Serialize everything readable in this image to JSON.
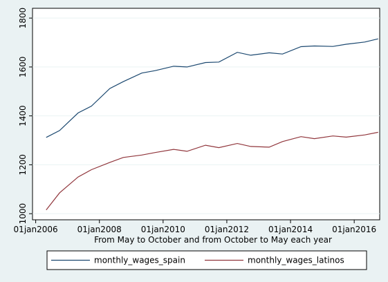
{
  "chart_data": {
    "type": "line",
    "title": "",
    "xlabel": "From May to October and from October to May each year",
    "ylabel": "",
    "xlim": [
      2005.9,
      2016.8
    ],
    "ylim": [
      975,
      1840
    ],
    "xticks": [
      {
        "value": 2006,
        "label": "01jan2006"
      },
      {
        "value": 2008,
        "label": "01jan2008"
      },
      {
        "value": 2010,
        "label": "01jan2010"
      },
      {
        "value": 2012,
        "label": "01jan2012"
      },
      {
        "value": 2014,
        "label": "01jan2014"
      },
      {
        "value": 2016,
        "label": "01jan2016"
      }
    ],
    "yticks": [
      1000,
      1200,
      1400,
      1600,
      1800
    ],
    "grid": "horizontal",
    "legend_position": "bottom",
    "series": [
      {
        "name": "monthly_wages_spain",
        "color": "#1a476f",
        "points": [
          [
            2006.33,
            1312
          ],
          [
            2006.75,
            1340
          ],
          [
            2007.33,
            1412
          ],
          [
            2007.75,
            1440
          ],
          [
            2008.33,
            1512
          ],
          [
            2008.75,
            1540
          ],
          [
            2009.33,
            1575
          ],
          [
            2009.75,
            1585
          ],
          [
            2010.33,
            1603
          ],
          [
            2010.75,
            1600
          ],
          [
            2011.33,
            1618
          ],
          [
            2011.75,
            1620
          ],
          [
            2012.33,
            1660
          ],
          [
            2012.75,
            1648
          ],
          [
            2013.33,
            1658
          ],
          [
            2013.75,
            1653
          ],
          [
            2014.33,
            1683
          ],
          [
            2014.75,
            1686
          ],
          [
            2015.33,
            1684
          ],
          [
            2015.75,
            1693
          ],
          [
            2016.33,
            1702
          ],
          [
            2016.75,
            1715
          ]
        ]
      },
      {
        "name": "monthly_wages_latinos",
        "color": "#90353b",
        "points": [
          [
            2006.33,
            1015
          ],
          [
            2006.75,
            1085
          ],
          [
            2007.33,
            1150
          ],
          [
            2007.75,
            1180
          ],
          [
            2008.33,
            1210
          ],
          [
            2008.75,
            1230
          ],
          [
            2009.33,
            1240
          ],
          [
            2009.75,
            1250
          ],
          [
            2010.33,
            1263
          ],
          [
            2010.75,
            1255
          ],
          [
            2011.33,
            1280
          ],
          [
            2011.75,
            1270
          ],
          [
            2012.33,
            1287
          ],
          [
            2012.75,
            1275
          ],
          [
            2013.33,
            1272
          ],
          [
            2013.75,
            1295
          ],
          [
            2014.33,
            1315
          ],
          [
            2014.75,
            1307
          ],
          [
            2015.33,
            1318
          ],
          [
            2015.75,
            1313
          ],
          [
            2016.33,
            1322
          ],
          [
            2016.75,
            1333
          ]
        ]
      }
    ]
  }
}
